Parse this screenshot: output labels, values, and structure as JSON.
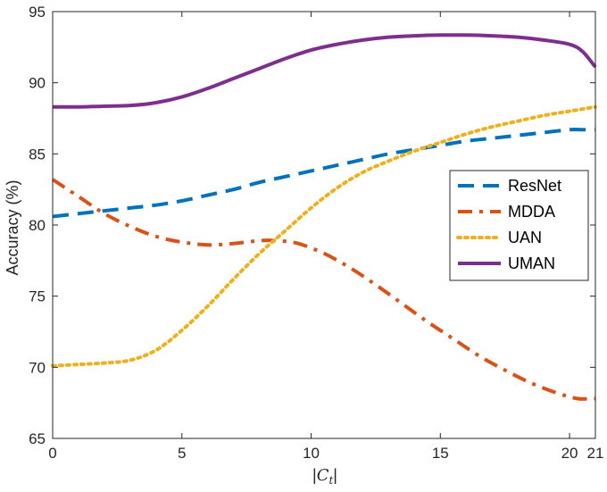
{
  "chart_data": {
    "type": "line",
    "title": "",
    "xlabel": "|C_t|",
    "ylabel": "Accuracy (%)",
    "xlim": [
      0,
      21
    ],
    "ylim": [
      65,
      95
    ],
    "xticks": [
      0,
      5,
      10,
      15,
      20,
      21
    ],
    "yticks": [
      65,
      70,
      75,
      80,
      85,
      90,
      95
    ],
    "legend": {
      "location": "right"
    },
    "series": [
      {
        "name": "ResNet",
        "color": "#0072BD",
        "style": "dashed",
        "x": [
          0,
          1,
          2,
          3,
          4,
          5,
          6,
          7,
          8,
          9,
          10,
          11,
          12,
          13,
          14,
          15,
          16,
          17,
          18,
          19,
          20,
          20.5,
          21
        ],
        "y": [
          80.6,
          80.8,
          81.0,
          81.2,
          81.4,
          81.7,
          82.1,
          82.5,
          83.0,
          83.4,
          83.8,
          84.2,
          84.6,
          85.0,
          85.3,
          85.6,
          85.9,
          86.1,
          86.3,
          86.5,
          86.7,
          86.7,
          86.7
        ]
      },
      {
        "name": "MDDA",
        "color": "#D95319",
        "style": "dashdot",
        "x": [
          0,
          1,
          2,
          3,
          4,
          5,
          6,
          7,
          8,
          8.7,
          9.5,
          10.5,
          11.5,
          12.5,
          13.5,
          14.5,
          15.5,
          16.5,
          17.5,
          18.5,
          19.5,
          20.3,
          20.8,
          21
        ],
        "y": [
          83.2,
          82.0,
          80.8,
          79.9,
          79.2,
          78.8,
          78.6,
          78.7,
          78.9,
          78.9,
          78.7,
          78.0,
          77.0,
          75.8,
          74.5,
          73.2,
          72.0,
          70.8,
          69.8,
          68.9,
          68.2,
          67.8,
          67.8,
          67.8
        ]
      },
      {
        "name": "UAN",
        "color": "#EDB120",
        "style": "dotted",
        "x": [
          0,
          1,
          2,
          3,
          4,
          5,
          6,
          7,
          8,
          9,
          10,
          11,
          12,
          13,
          14,
          15,
          16,
          17,
          18,
          19,
          20,
          21
        ],
        "y": [
          70.1,
          70.2,
          70.3,
          70.5,
          71.2,
          72.6,
          74.3,
          76.2,
          78.0,
          79.6,
          81.2,
          82.6,
          83.7,
          84.5,
          85.2,
          85.8,
          86.4,
          86.9,
          87.3,
          87.7,
          88.0,
          88.3
        ]
      },
      {
        "name": "UMAN",
        "color": "#7E2F8E",
        "style": "solid",
        "x": [
          0,
          1,
          2,
          3,
          4,
          5,
          6,
          7,
          8,
          9,
          10,
          11,
          12,
          13,
          14,
          15,
          16,
          17,
          18,
          19,
          20,
          20.5,
          21
        ],
        "y": [
          88.3,
          88.3,
          88.35,
          88.4,
          88.6,
          89.0,
          89.6,
          90.3,
          91.0,
          91.7,
          92.3,
          92.7,
          93.0,
          93.2,
          93.3,
          93.35,
          93.35,
          93.3,
          93.2,
          93.0,
          92.7,
          92.2,
          91.1
        ]
      }
    ]
  }
}
